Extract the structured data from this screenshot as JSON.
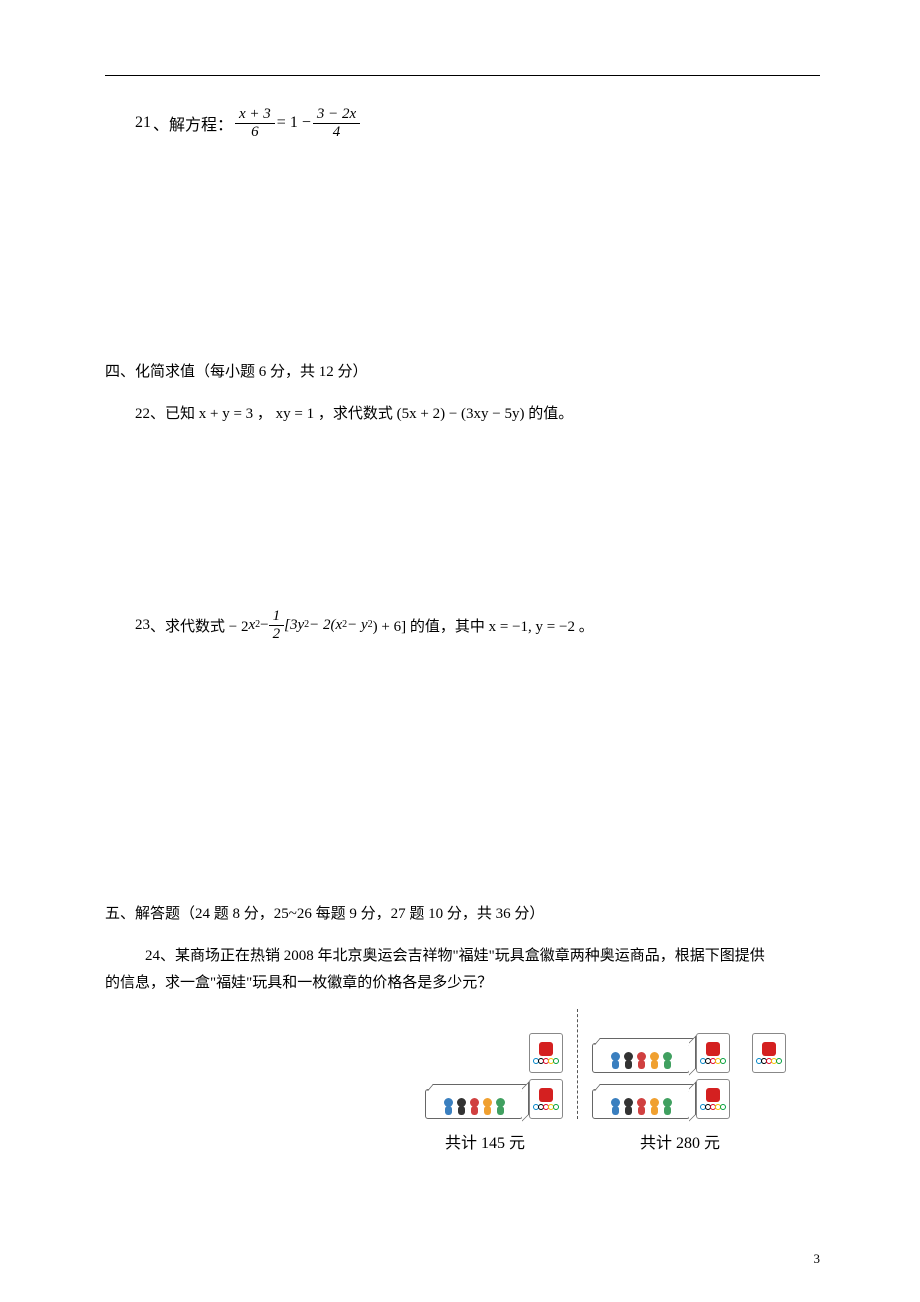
{
  "q21": {
    "num": "21",
    "label": "、解方程：",
    "frac1_num": "x + 3",
    "frac1_den": "6",
    "mid": " = 1 − ",
    "frac2_num": "3 − 2x",
    "frac2_den": "4"
  },
  "section4": {
    "title": "四、化简求值（每小题 6 分，共 12 分）"
  },
  "q22": {
    "num": "22",
    "text": "、已知 x + y = 3 ， xy = 1 ，求代数式 (5x + 2) − (3xy − 5y) 的值。"
  },
  "q23": {
    "num": "23",
    "prefix": "、求代数式 − 2",
    "x2": "x",
    "minus": " − ",
    "frac_num": "1",
    "frac_den": "2",
    "bracket": "[3y",
    "part2": " − 2(x",
    "part3": " − y",
    "part4": ") + 6] 的值，其中 x = −1, y = −2 。"
  },
  "section5": {
    "title": "五、解答题（24 题 8 分，25~26 每题 9 分，27 题 10 分，共 36 分）"
  },
  "q24": {
    "num": "24",
    "text1": "、某商场正在热销 2008 年北京奥运会吉祥物\"福娃\"玩具盒徽章两种奥运商品，根据下图提供",
    "text2": "的信息，求一盒\"福娃\"玩具和一枚徽章的价格各是多少元？"
  },
  "captions": {
    "c1": "共计 145 元",
    "c2": "共计 280 元"
  },
  "fuwa_colors": [
    "#3a7fbf",
    "#333333",
    "#d04040",
    "#f0a030",
    "#40a060"
  ],
  "badge_logo_color": "#d42020",
  "ring_colors": [
    "#0085c7",
    "#000000",
    "#df0024",
    "#f4c300",
    "#009f3d"
  ],
  "page_num": "3"
}
